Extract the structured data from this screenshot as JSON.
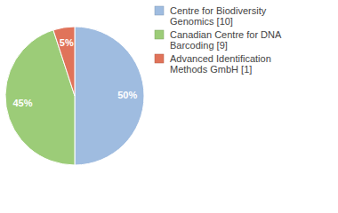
{
  "chart_data": {
    "type": "pie",
    "categories": [
      "Centre for Biodiversity Genomics [10]",
      "Canadian Centre for DNA Barcoding [9]",
      "Advanced Identification Methods GmbH [1]"
    ],
    "values": [
      50,
      45,
      5
    ],
    "value_labels": [
      "50%",
      "45%",
      "5%"
    ],
    "colors": [
      "#9fbce0",
      "#9ccc78",
      "#e0735a"
    ],
    "data_labels": true
  }
}
